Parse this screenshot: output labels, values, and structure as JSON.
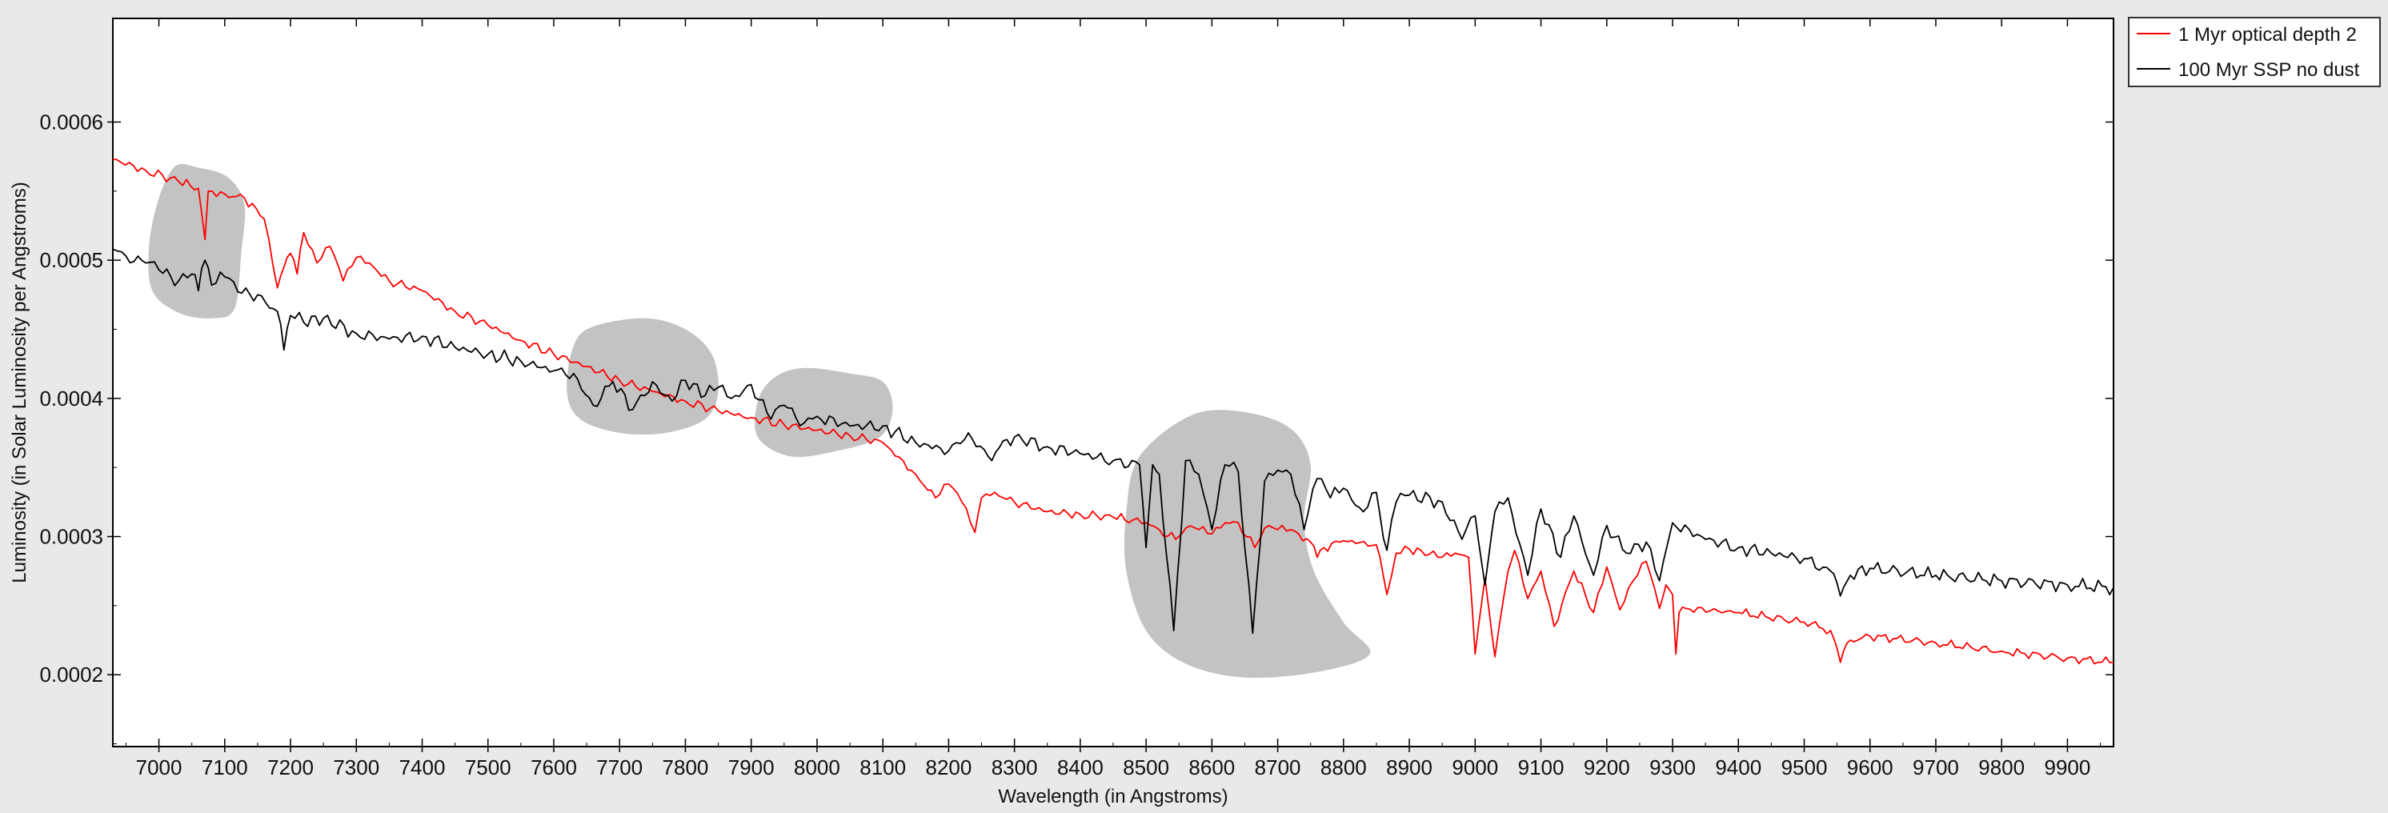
{
  "chart_data": {
    "type": "line",
    "title": "",
    "xlabel": "Wavelength (in Angstroms)",
    "ylabel": "Luminosity (in Solar Luminosity per Angstroms)",
    "xlim": [
      6930,
      9970
    ],
    "ylim": [
      0.000148,
      0.000675
    ],
    "x_ticks": [
      7000,
      7100,
      7200,
      7300,
      7400,
      7500,
      7600,
      7700,
      7800,
      7900,
      8000,
      8100,
      8200,
      8300,
      8400,
      8500,
      8600,
      8700,
      8800,
      8900,
      9000,
      9100,
      9200,
      9300,
      9400,
      9500,
      9600,
      9700,
      9800,
      9900
    ],
    "y_ticks": [
      0.0002,
      0.0003,
      0.0004,
      0.0005,
      0.0006
    ],
    "y_tick_labels": [
      "0.0002",
      "0.0003",
      "0.0004",
      "0.0005",
      "0.0006"
    ],
    "grid": false,
    "legend": "outside-right-top",
    "series": [
      {
        "name": "1 Myr optical depth 2",
        "color": "#ff0000",
        "x": [
          6930,
          6980,
          7030,
          7060,
          7070,
          7075,
          7100,
          7130,
          7160,
          7180,
          7190,
          7200,
          7210,
          7220,
          7240,
          7260,
          7280,
          7300,
          7320,
          7350,
          7400,
          7450,
          7500,
          7550,
          7600,
          7650,
          7700,
          7750,
          7800,
          7850,
          7900,
          7950,
          8000,
          8050,
          8100,
          8150,
          8180,
          8200,
          8220,
          8240,
          8250,
          8270,
          8300,
          8350,
          8400,
          8450,
          8480,
          8500,
          8520,
          8545,
          8560,
          8580,
          8600,
          8620,
          8640,
          8665,
          8680,
          8700,
          8720,
          8750,
          8760,
          8770,
          8800,
          8850,
          8866,
          8880,
          8900,
          8930,
          8950,
          8970,
          8990,
          9000,
          9015,
          9030,
          9050,
          9060,
          9080,
          9100,
          9120,
          9150,
          9180,
          9200,
          9220,
          9240,
          9260,
          9280,
          9290,
          9300,
          9305,
          9310,
          9320,
          9400,
          9500,
          9540,
          9555,
          9570,
          9600,
          9700,
          9800,
          9900,
          9970
        ],
        "y": [
          0.000573,
          0.000565,
          0.000557,
          0.000552,
          0.000515,
          0.00055,
          0.000548,
          0.000545,
          0.00053,
          0.00048,
          0.000495,
          0.000505,
          0.00049,
          0.00052,
          0.000498,
          0.00051,
          0.000485,
          0.000502,
          0.000498,
          0.000485,
          0.000478,
          0.000463,
          0.000453,
          0.000442,
          0.000432,
          0.000423,
          0.000413,
          0.000405,
          0.000398,
          0.000391,
          0.000386,
          0.000381,
          0.000377,
          0.000373,
          0.000368,
          0.000345,
          0.000328,
          0.000338,
          0.000325,
          0.000303,
          0.000328,
          0.000332,
          0.000325,
          0.000318,
          0.000316,
          0.000314,
          0.000312,
          0.00031,
          0.000305,
          0.000298,
          0.000306,
          0.000305,
          0.000302,
          0.00031,
          0.00031,
          0.000292,
          0.000306,
          0.000305,
          0.000305,
          0.000296,
          0.000285,
          0.000292,
          0.000297,
          0.000294,
          0.000258,
          0.000288,
          0.000291,
          0.000287,
          0.000285,
          0.000288,
          0.000285,
          0.000215,
          0.00027,
          0.000213,
          0.000275,
          0.00029,
          0.000255,
          0.000275,
          0.000235,
          0.000275,
          0.000245,
          0.000278,
          0.000247,
          0.000268,
          0.000282,
          0.000248,
          0.000265,
          0.000258,
          0.000215,
          0.000245,
          0.000248,
          0.000245,
          0.000238,
          0.000232,
          0.000209,
          0.000225,
          0.000228,
          0.000223,
          0.000217,
          0.000212,
          0.000209
        ]
      },
      {
        "name": "100 Myr SSP no dust",
        "color": "#000000",
        "x": [
          6930,
          6950,
          6980,
          7000,
          7030,
          7050,
          7060,
          7070,
          7080,
          7100,
          7120,
          7150,
          7180,
          7190,
          7200,
          7220,
          7250,
          7300,
          7350,
          7400,
          7450,
          7500,
          7550,
          7600,
          7630,
          7660,
          7690,
          7720,
          7750,
          7780,
          7800,
          7830,
          7850,
          7870,
          7900,
          7930,
          7950,
          7980,
          8000,
          8050,
          8100,
          8150,
          8200,
          8230,
          8260,
          8300,
          8350,
          8400,
          8450,
          8490,
          8500,
          8510,
          8520,
          8542,
          8560,
          8580,
          8600,
          8620,
          8640,
          8662,
          8680,
          8700,
          8720,
          8740,
          8760,
          8780,
          8800,
          8830,
          8850,
          8866,
          8880,
          8900,
          8950,
          8980,
          9000,
          9015,
          9030,
          9050,
          9080,
          9100,
          9130,
          9150,
          9180,
          9200,
          9230,
          9260,
          9280,
          9300,
          9350,
          9400,
          9450,
          9500,
          9540,
          9555,
          9570,
          9600,
          9700,
          9800,
          9900,
          9970
        ],
        "y": [
          0.000508,
          0.000503,
          0.000498,
          0.000493,
          0.000485,
          0.00049,
          0.000478,
          0.0005,
          0.000482,
          0.000488,
          0.000477,
          0.000475,
          0.000463,
          0.000435,
          0.00046,
          0.000455,
          0.000458,
          0.000447,
          0.000443,
          0.000445,
          0.000437,
          0.000432,
          0.000427,
          0.00042,
          0.000418,
          0.000395,
          0.000412,
          0.000392,
          0.000412,
          0.000398,
          0.000413,
          0.000402,
          0.000408,
          0.0004,
          0.00041,
          0.000385,
          0.000395,
          0.000382,
          0.000387,
          0.00038,
          0.00038,
          0.000368,
          0.000362,
          0.000375,
          0.000358,
          0.000372,
          0.000365,
          0.00036,
          0.000355,
          0.000352,
          0.000292,
          0.000352,
          0.000345,
          0.000232,
          0.000355,
          0.000345,
          0.000305,
          0.000352,
          0.000347,
          0.00023,
          0.00034,
          0.000348,
          0.000345,
          0.000305,
          0.000342,
          0.000328,
          0.000335,
          0.000318,
          0.000332,
          0.00029,
          0.000325,
          0.00033,
          0.000325,
          0.000298,
          0.000315,
          0.000265,
          0.000318,
          0.000328,
          0.000272,
          0.00032,
          0.000285,
          0.000315,
          0.000272,
          0.000308,
          0.000288,
          0.000296,
          0.000268,
          0.00031,
          0.000298,
          0.000292,
          0.000288,
          0.000284,
          0.000275,
          0.000257,
          0.000272,
          0.000277,
          0.000272,
          0.000268,
          0.000265,
          0.000263
        ]
      }
    ],
    "annotations": [
      {
        "shape": "blob",
        "color": "#c0c0c0",
        "points": [
          [
            7025,
            0.000568
          ],
          [
            7060,
            0.000567
          ],
          [
            7105,
            0.00056
          ],
          [
            7130,
            0.00054
          ],
          [
            7125,
            0.000505
          ],
          [
            7115,
            0.000465
          ],
          [
            7080,
            0.000458
          ],
          [
            7030,
            0.000462
          ],
          [
            6990,
            0.000478
          ],
          [
            6985,
            0.00051
          ],
          [
            7000,
            0.000545
          ]
        ]
      },
      {
        "shape": "blob",
        "color": "#c0c0c0",
        "points": [
          [
            7660,
            0.000452
          ],
          [
            7740,
            0.000458
          ],
          [
            7800,
            0.00045
          ],
          [
            7840,
            0.000432
          ],
          [
            7850,
            0.000405
          ],
          [
            7830,
            0.000385
          ],
          [
            7770,
            0.000375
          ],
          [
            7700,
            0.000375
          ],
          [
            7640,
            0.000385
          ],
          [
            7620,
            0.000405
          ],
          [
            7630,
            0.000438
          ]
        ]
      },
      {
        "shape": "blob",
        "color": "#c0c0c0",
        "points": [
          [
            7935,
            0.000415
          ],
          [
            7980,
            0.000422
          ],
          [
            8050,
            0.000418
          ],
          [
            8100,
            0.000412
          ],
          [
            8115,
            0.000392
          ],
          [
            8095,
            0.000372
          ],
          [
            8030,
            0.000362
          ],
          [
            7960,
            0.000358
          ],
          [
            7910,
            0.000372
          ],
          [
            7910,
            0.000398
          ]
        ]
      },
      {
        "shape": "blob",
        "color": "#c0c0c0",
        "points": [
          [
            8490,
            0.000358
          ],
          [
            8570,
            0.000388
          ],
          [
            8650,
            0.00039
          ],
          [
            8720,
            0.000378
          ],
          [
            8750,
            0.000352
          ],
          [
            8740,
            0.000312
          ],
          [
            8755,
            0.000275
          ],
          [
            8800,
            0.000238
          ],
          [
            8840,
            0.000215
          ],
          [
            8760,
            0.000202
          ],
          [
            8650,
            0.000198
          ],
          [
            8560,
            0.000208
          ],
          [
            8500,
            0.000232
          ],
          [
            8470,
            0.000275
          ],
          [
            8470,
            0.000318
          ]
        ]
      }
    ]
  }
}
